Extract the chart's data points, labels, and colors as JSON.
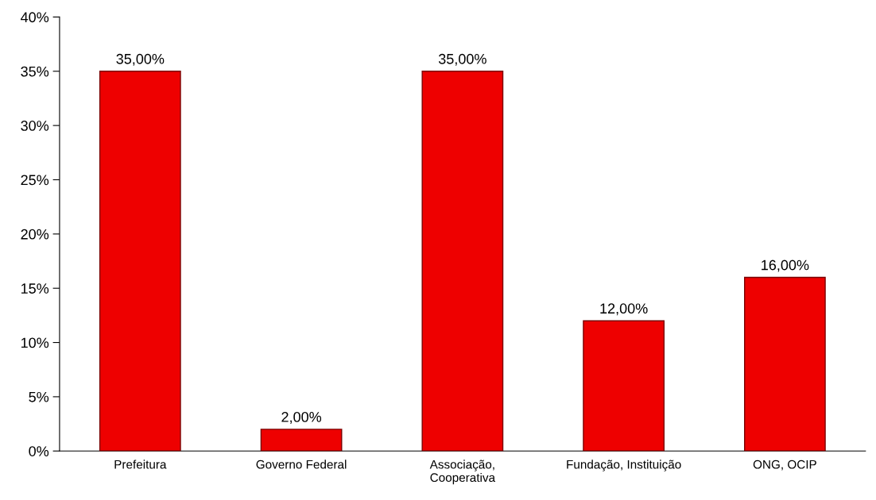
{
  "chart_data": {
    "type": "bar",
    "categories": [
      "Prefeitura",
      "Governo Federal",
      "Associação,\nCooperativa",
      "Fundação, Instituição",
      "ONG, OCIP"
    ],
    "values": [
      35,
      2,
      35,
      12,
      16
    ],
    "value_labels": [
      "35,00%",
      "2,00%",
      "35,00%",
      "12,00%",
      "16,00%"
    ],
    "color": "#ee0000",
    "ylim": [
      0,
      40
    ],
    "yticks": [
      {
        "value": 0,
        "label": "0%"
      },
      {
        "value": 5,
        "label": "5%"
      },
      {
        "value": 10,
        "label": "10%"
      },
      {
        "value": 15,
        "label": "15%"
      },
      {
        "value": 20,
        "label": "20%"
      },
      {
        "value": 25,
        "label": "25%"
      },
      {
        "value": 30,
        "label": "30%"
      },
      {
        "value": 35,
        "label": "35%"
      },
      {
        "value": 40,
        "label": "40%"
      }
    ],
    "grid": false,
    "legend": false
  }
}
